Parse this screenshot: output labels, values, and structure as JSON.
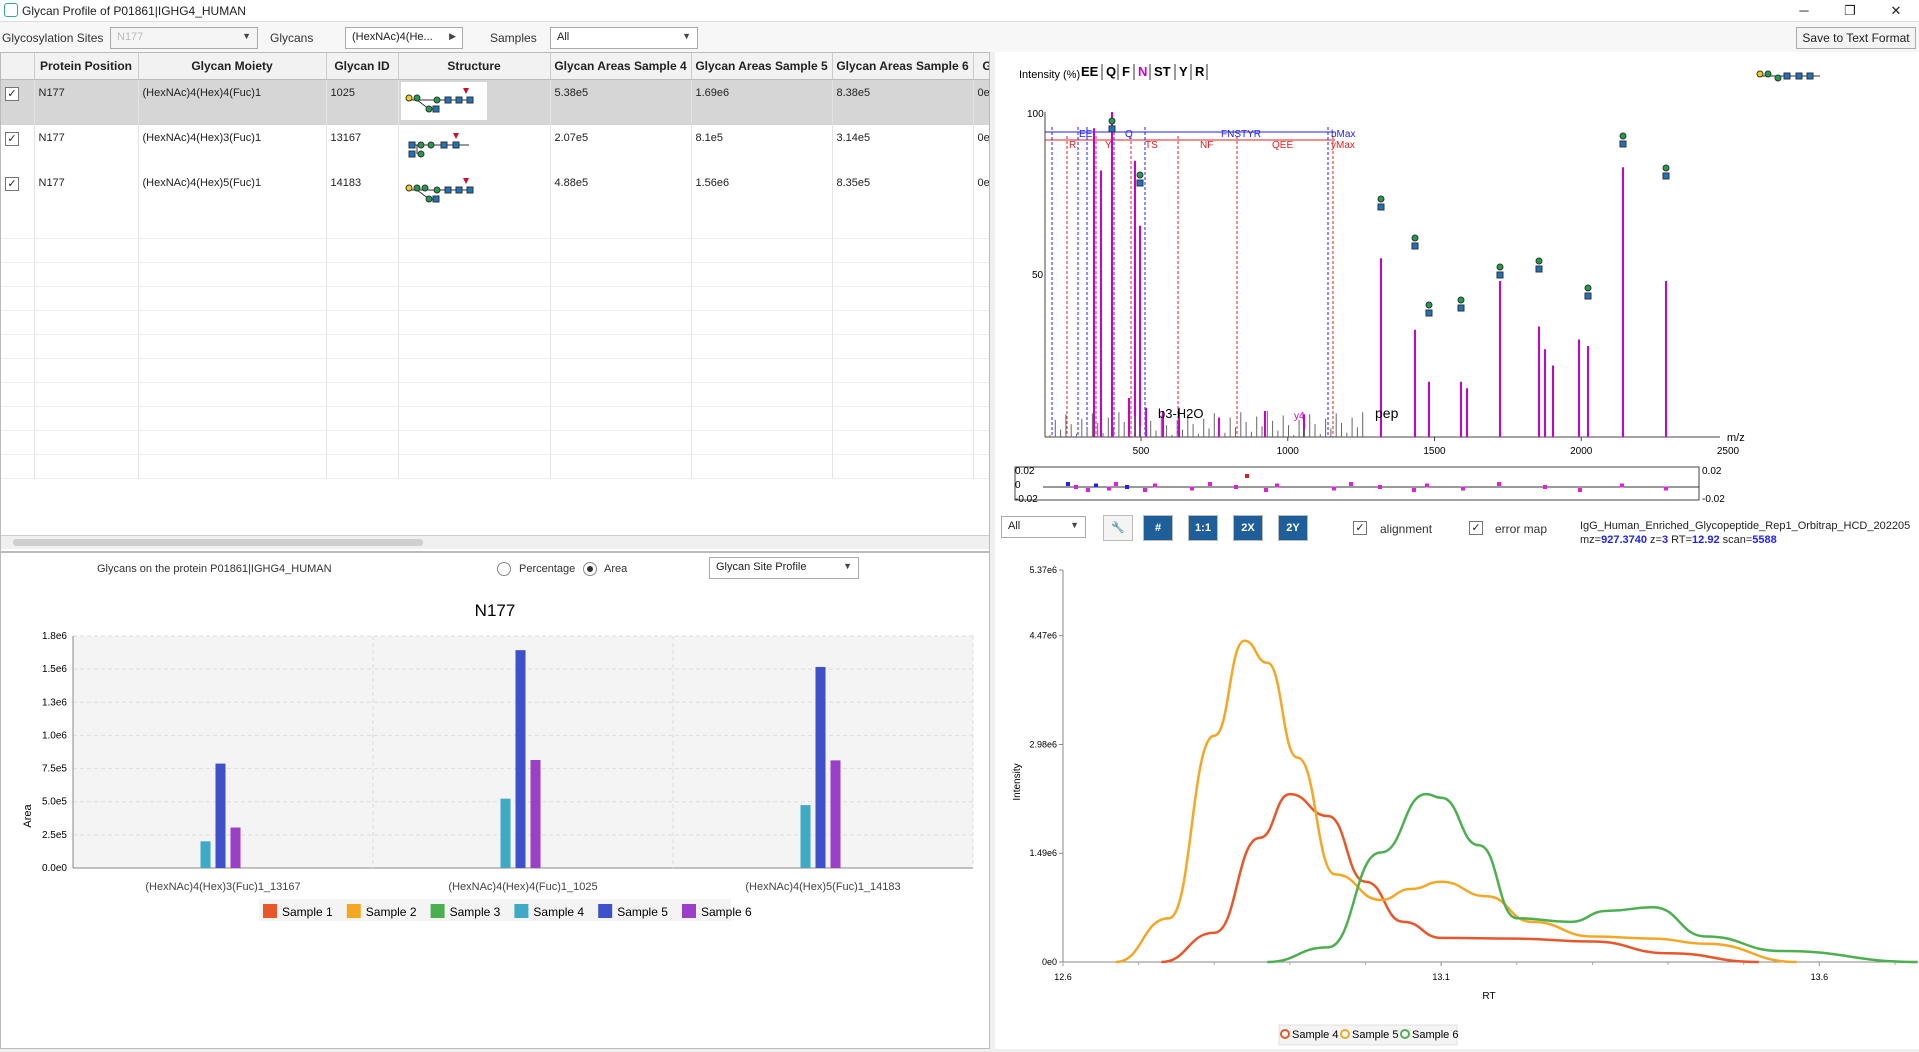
{
  "window": {
    "title": "Glycan Profile of P01861|IGHG4_HUMAN"
  },
  "toolbar": {
    "sites_label": "Glycosylation Sites",
    "sites_value": "N177",
    "glycans_label": "Glycans",
    "glycans_value": "(HexNAc)4(He...",
    "samples_label": "Samples",
    "samples_value": "All",
    "save_label": "Save to Text Format"
  },
  "table": {
    "headers": [
      "Protein Position",
      "Glycan Moiety",
      "Glycan ID",
      "Structure",
      "Glycan Areas Sample 4",
      "Glycan Areas Sample 5",
      "Glycan Areas Sample 6",
      "G"
    ],
    "rows": [
      {
        "position": "N177",
        "moiety": "(HexNAc)4(Hex)4(Fuc)1",
        "id": "1025",
        "s4": "5.38e5",
        "s5": "1.69e6",
        "s6": "8.38e5",
        "extra": "0e"
      },
      {
        "position": "N177",
        "moiety": "(HexNAc)4(Hex)3(Fuc)1",
        "id": "13167",
        "s4": "2.07e5",
        "s5": "8.1e5",
        "s6": "3.14e5",
        "extra": "0e"
      },
      {
        "position": "N177",
        "moiety": "(HexNAc)4(Hex)5(Fuc)1",
        "id": "14183",
        "s4": "4.88e5",
        "s5": "1.56e6",
        "s6": "8.35e5",
        "extra": "0e"
      }
    ]
  },
  "spectrum": {
    "ylabel": "Intensity (%)",
    "sequence": [
      "EE",
      "Q",
      "F",
      "N",
      "ST",
      "Y",
      "R"
    ],
    "xlabel": "m/z",
    "y_ticks": [
      "100",
      "50"
    ],
    "x_ticks": [
      "500",
      "1000",
      "1500",
      "2000",
      "2500"
    ],
    "b_ions": [
      "EE",
      "Q",
      "FNSTYR"
    ],
    "y_ions": [
      "R",
      "Y",
      "TS",
      "NF",
      "QEE"
    ],
    "b_max": "bMax",
    "y_max": "yMax",
    "label_b3": "b3-H2O",
    "label_pep": "pep",
    "label_y": "y4",
    "err_ticks": [
      "0.02",
      "0",
      "-0.02"
    ],
    "err_ticks_right": [
      "0.02",
      "-0.02"
    ],
    "controls": {
      "filter": "All",
      "btn_hash": "#",
      "btn_11": "1:1",
      "btn_2x": "2X",
      "btn_2y": "2Y",
      "alignment": "alignment",
      "error_map": "error map"
    },
    "file": "IgG_Human_Enriched_Glycopeptide_Rep1_Orbitrap_HCD_202205",
    "mz_label": "mz=",
    "mz": "927.3740",
    "z_label": " z=",
    "z": "3",
    "rt_label": " RT=",
    "rt": "12.92",
    "scan_label": " scan=",
    "scan": "5588",
    "colors": {
      "b": "#1f1fff",
      "y": "#e02020",
      "peak": "#cc00cc"
    }
  },
  "site_controls": {
    "label": "Glycans on the protein P01861|IGHG4_HUMAN",
    "percentage": "Percentage",
    "area": "Area",
    "profile": "Glycan Site Profile"
  },
  "chart_data": [
    {
      "type": "bar",
      "title": "N177",
      "ylabel": "Area",
      "xlabel": "",
      "ylim": [
        0,
        1800000
      ],
      "y_ticks": [
        "0.0e0",
        "2.5e5",
        "5.0e5",
        "7.5e5",
        "1.0e6",
        "1.3e6",
        "1.5e6",
        "1.8e6"
      ],
      "categories": [
        "(HexNAc)4(Hex)3(Fuc)1_13167",
        "(HexNAc)4(Hex)4(Fuc)1_1025",
        "(HexNAc)4(Hex)5(Fuc)1_14183"
      ],
      "series": [
        {
          "name": "Sample 1",
          "color": "#e8562a",
          "values": [
            0,
            0,
            0
          ]
        },
        {
          "name": "Sample 2",
          "color": "#f5a623",
          "values": [
            0,
            0,
            0
          ]
        },
        {
          "name": "Sample 3",
          "color": "#4caf50",
          "values": [
            0,
            0,
            0
          ]
        },
        {
          "name": "Sample 4",
          "color": "#3fa9c8",
          "values": [
            207000,
            538000,
            488000
          ]
        },
        {
          "name": "Sample 5",
          "color": "#3f51c8",
          "values": [
            810000,
            1690000,
            1560000
          ]
        },
        {
          "name": "Sample 6",
          "color": "#9c3fc8",
          "values": [
            314000,
            838000,
            835000
          ]
        }
      ],
      "legend": "bottom"
    },
    {
      "type": "line",
      "xlabel": "RT",
      "ylabel": "Intensity",
      "xlim": [
        12.6,
        13.7
      ],
      "ylim": [
        0,
        5370000
      ],
      "x_ticks": [
        "12.6",
        "13.1",
        "13.6"
      ],
      "y_ticks": [
        "0e0",
        "1.49e6",
        "2.98e6",
        "4.47e6",
        "5.37e6"
      ],
      "series": [
        {
          "name": "Sample 4",
          "color": "#e8562a",
          "x": [
            12.73,
            12.8,
            12.86,
            12.9,
            12.95,
            13.0,
            13.05,
            13.1,
            13.2,
            13.3,
            13.4,
            13.52
          ],
          "y": [
            0,
            400000,
            1700000,
            2300000,
            2000000,
            1100000,
            550000,
            330000,
            320000,
            280000,
            120000,
            0
          ]
        },
        {
          "name": "Sample 5",
          "color": "#f5a623",
          "x": [
            12.67,
            12.74,
            12.8,
            12.84,
            12.87,
            12.91,
            12.96,
            13.02,
            13.06,
            13.1,
            13.16,
            13.22,
            13.3,
            13.38,
            13.45,
            13.57
          ],
          "y": [
            0,
            600000,
            3100000,
            4400000,
            4100000,
            2800000,
            1200000,
            850000,
            1000000,
            1100000,
            900000,
            550000,
            350000,
            320000,
            250000,
            0
          ]
        },
        {
          "name": "Sample 6",
          "color": "#4caf50",
          "x": [
            12.87,
            12.95,
            13.02,
            13.08,
            13.1,
            13.15,
            13.2,
            13.27,
            13.32,
            13.38,
            13.45,
            13.55,
            13.73
          ],
          "y": [
            0,
            200000,
            1500000,
            2300000,
            2250000,
            1600000,
            600000,
            550000,
            700000,
            750000,
            350000,
            150000,
            0
          ]
        }
      ],
      "legend": "bottom"
    }
  ]
}
